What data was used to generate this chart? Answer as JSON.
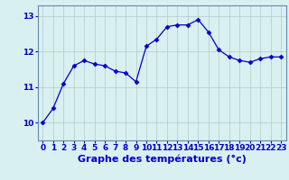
{
  "x": [
    0,
    1,
    2,
    3,
    4,
    5,
    6,
    7,
    8,
    9,
    10,
    11,
    12,
    13,
    14,
    15,
    16,
    17,
    18,
    19,
    20,
    21,
    22,
    23
  ],
  "y": [
    10.0,
    10.4,
    11.1,
    11.6,
    11.75,
    11.65,
    11.6,
    11.45,
    11.4,
    11.15,
    12.15,
    12.35,
    12.7,
    12.75,
    12.75,
    12.9,
    12.55,
    12.05,
    11.85,
    11.75,
    11.7,
    11.8,
    11.85,
    11.85
  ],
  "line_color": "#0000cc",
  "marker": "D",
  "marker_size": 2.5,
  "bg_color": "#d8f0f0",
  "grid_color": "#b0c8c8",
  "xlabel": "Graphe des températures (°c)",
  "xlabel_color": "#0000cc",
  "ylim": [
    9.5,
    13.3
  ],
  "xlim": [
    -0.5,
    23.5
  ],
  "yticks": [
    10,
    11,
    12,
    13
  ],
  "xticks": [
    0,
    1,
    2,
    3,
    4,
    5,
    6,
    7,
    8,
    9,
    10,
    11,
    12,
    13,
    14,
    15,
    16,
    17,
    18,
    19,
    20,
    21,
    22,
    23
  ],
  "tick_fontsize": 6.5,
  "label_fontsize": 8,
  "spine_color": "#6688aa"
}
